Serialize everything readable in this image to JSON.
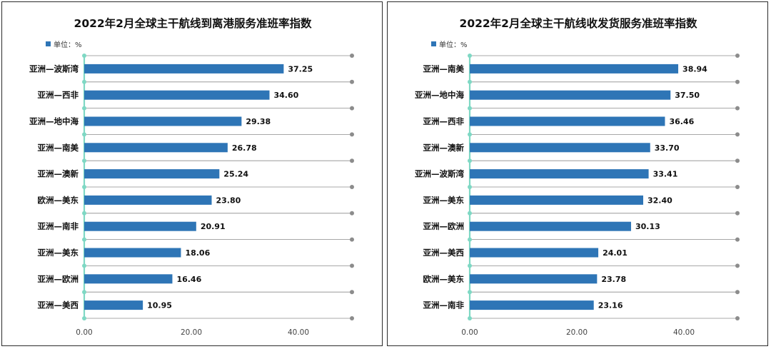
{
  "colors": {
    "bar": "#2E75B6",
    "axis": "#7FD8C4",
    "grid": "#8C8C8C",
    "dot": "#8C8C8C"
  },
  "chart_data": [
    {
      "type": "bar",
      "orientation": "horizontal",
      "title": "2022年2月全球主干航线到离港服务准班率指数",
      "legend": "单位：%",
      "categories": [
        "亚洲—波斯湾",
        "亚洲—西非",
        "亚洲—地中海",
        "亚洲—南美",
        "亚洲—澳新",
        "欧洲—美东",
        "亚洲—南非",
        "亚洲—美东",
        "亚洲—欧洲",
        "亚洲—美西"
      ],
      "values": [
        37.25,
        34.6,
        29.38,
        26.78,
        25.24,
        23.8,
        20.91,
        18.06,
        16.46,
        10.95
      ],
      "value_labels": [
        "37.25",
        "34.60",
        "29.38",
        "26.78",
        "25.24",
        "23.80",
        "20.91",
        "18.06",
        "16.46",
        "10.95"
      ],
      "xlim": [
        0,
        50
      ],
      "xticks": [
        "0.00",
        "20.00",
        "40.00"
      ],
      "xtick_values": [
        0,
        20,
        40
      ],
      "legend_position": "top-left"
    },
    {
      "type": "bar",
      "orientation": "horizontal",
      "title": "2022年2月全球主干航线收发货服务准班率指数",
      "legend": "单位：%",
      "categories": [
        "亚洲—南美",
        "亚洲—地中海",
        "亚洲—西非",
        "亚洲—澳新",
        "亚洲—波斯湾",
        "亚洲—美东",
        "亚洲—欧洲",
        "亚洲—美西",
        "欧洲—美东",
        "亚洲—南非"
      ],
      "values": [
        38.94,
        37.5,
        36.46,
        33.7,
        33.41,
        32.4,
        30.13,
        24.01,
        23.78,
        23.16
      ],
      "value_labels": [
        "38.94",
        "37.50",
        "36.46",
        "33.70",
        "33.41",
        "32.40",
        "30.13",
        "24.01",
        "23.78",
        "23.16"
      ],
      "xlim": [
        0,
        50
      ],
      "xticks": [
        "0.00",
        "20.00",
        "40.00"
      ],
      "xtick_values": [
        0,
        20,
        40
      ],
      "legend_position": "top-left"
    }
  ]
}
